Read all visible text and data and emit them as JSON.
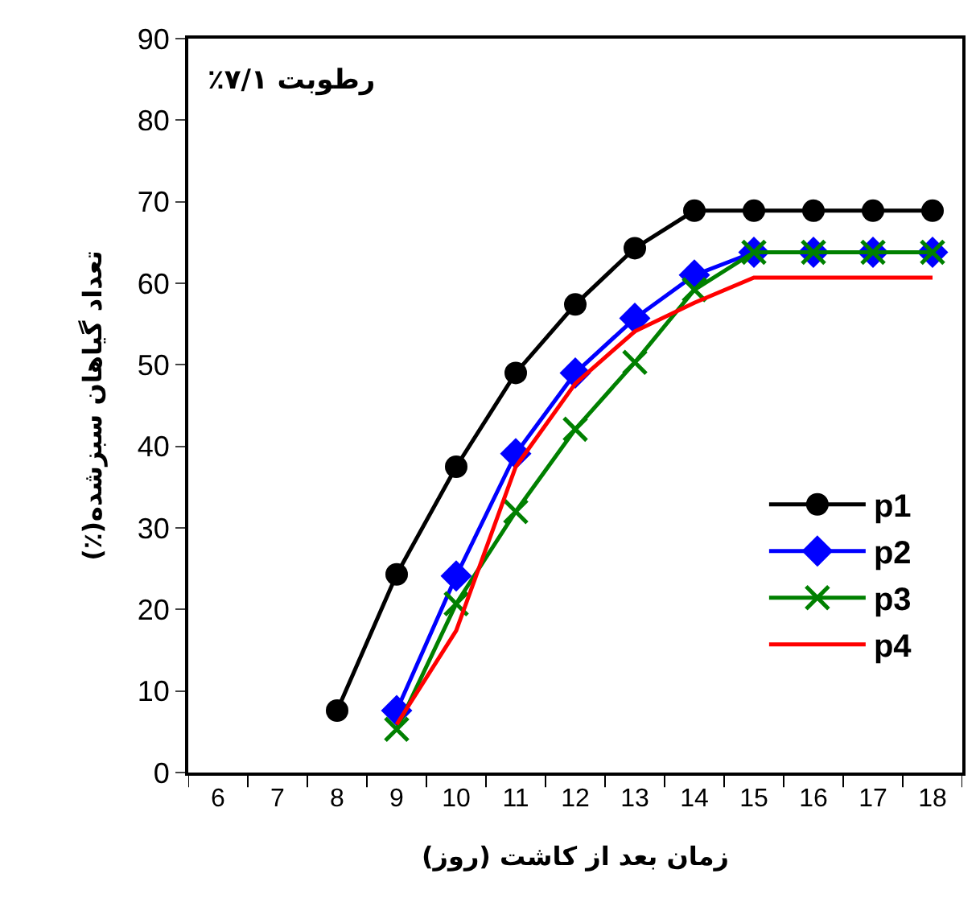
{
  "chart_data": {
    "type": "line",
    "categories": [
      "6",
      "7",
      "8",
      "9",
      "10",
      "11",
      "12",
      "13",
      "14",
      "15",
      "16",
      "17",
      "18"
    ],
    "xlabel": "زمان بعد از کاشت (روز)",
    "ylabel": "تعداد گیاهان سبزشده(٪)",
    "annotations": [
      "رطوبت ۷/۱٪"
    ],
    "ylim": [
      0,
      90
    ],
    "yticks": [
      0,
      10,
      20,
      30,
      40,
      50,
      60,
      70,
      80,
      90
    ],
    "legend": "right",
    "line_style": "solid",
    "series": [
      {
        "name": "p1",
        "color": "#000000",
        "marker": "circle",
        "values": [
          null,
          null,
          7.6,
          24.3,
          37.5,
          49.0,
          57.4,
          64.3,
          68.9,
          68.9,
          68.9,
          68.9,
          68.9
        ]
      },
      {
        "name": "p2",
        "color": "#0000ff",
        "marker": "diamond",
        "values": [
          null,
          null,
          null,
          7.6,
          24.1,
          39.1,
          49.0,
          55.7,
          61.0,
          63.8,
          63.8,
          63.8,
          63.8
        ]
      },
      {
        "name": "p3",
        "color": "#008000",
        "marker": "cross",
        "values": [
          null,
          null,
          null,
          5.3,
          20.7,
          32.0,
          42.1,
          50.3,
          59.2,
          63.8,
          63.8,
          63.8,
          63.8
        ]
      },
      {
        "name": "p4",
        "color": "#ff0000",
        "marker": "none",
        "values": [
          null,
          null,
          null,
          5.9,
          17.4,
          37.5,
          47.7,
          54.1,
          57.6,
          60.7,
          60.7,
          60.7,
          60.7
        ]
      }
    ]
  }
}
